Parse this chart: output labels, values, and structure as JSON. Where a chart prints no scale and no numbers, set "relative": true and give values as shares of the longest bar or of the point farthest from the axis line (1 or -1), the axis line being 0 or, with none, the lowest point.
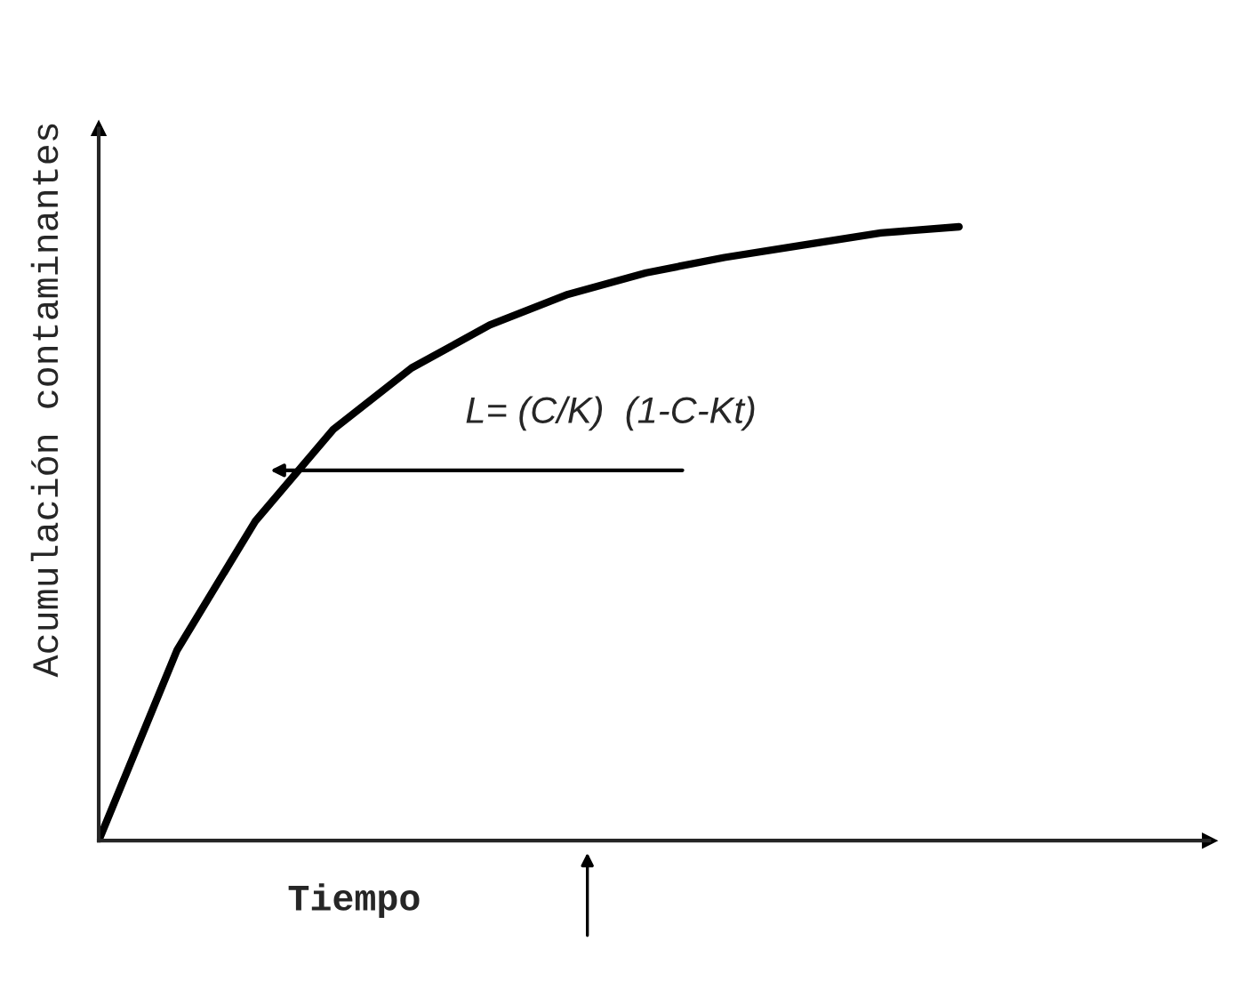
{
  "chart_data": {
    "type": "line",
    "relative": true,
    "xlabel": "Tiempo",
    "ylabel": "Acumulación contaminantes",
    "categories": [
      null,
      null,
      null,
      null,
      null,
      null,
      null,
      null,
      null,
      null,
      null,
      null,
      null,
      null,
      null
    ],
    "series": [
      {
        "color": "#000000",
        "values": [
          0,
          0.31,
          0.52,
          0.67,
          0.77,
          0.84,
          0.89,
          0.925,
          0.95,
          0.97,
          0.99,
          1.0,
          null,
          null,
          null
        ]
      }
    ],
    "annotations": [
      "L= (C/K)  (1-C-Kt)"
    ],
    "grid": false,
    "legend": false,
    "marker": "none",
    "line_style": "solid"
  }
}
